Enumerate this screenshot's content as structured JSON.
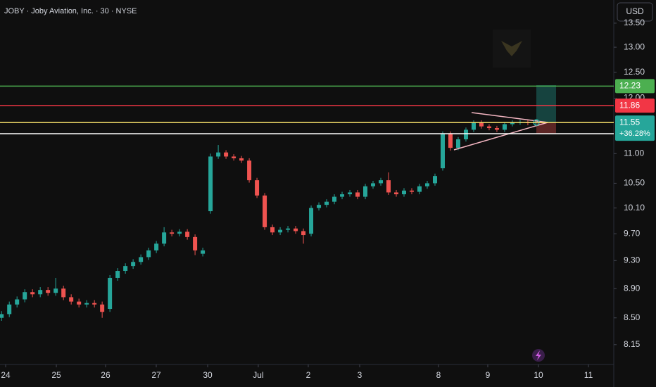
{
  "chart_data": {
    "type": "candlestick",
    "title": "JOBY · Joby Aviation, Inc. · 30 · NYSE",
    "currency": "USD",
    "log_scale": true,
    "grid": false,
    "up_color": "#26a69a",
    "down_color": "#ef5350",
    "x": [
      0,
      1,
      2,
      3,
      4,
      5,
      6,
      7,
      8,
      9,
      10,
      11,
      12,
      13,
      14,
      15,
      16,
      17,
      18,
      19,
      20,
      21,
      22,
      23,
      24,
      25,
      26,
      27,
      28,
      29,
      30,
      31,
      32,
      33,
      34,
      35,
      36,
      37,
      38,
      39,
      40,
      41,
      42,
      43,
      44,
      45,
      46,
      47,
      48,
      49,
      50,
      51,
      52,
      53,
      54,
      55,
      56,
      57,
      58,
      59,
      60,
      61,
      62,
      63,
      64,
      65,
      66,
      67,
      68,
      69
    ],
    "open": [
      8.5,
      8.55,
      8.68,
      8.75,
      8.85,
      8.82,
      8.88,
      8.84,
      8.9,
      8.78,
      8.72,
      8.68,
      8.7,
      8.68,
      8.62,
      9.05,
      9.15,
      9.22,
      9.28,
      9.35,
      9.45,
      9.55,
      9.72,
      9.7,
      9.73,
      9.65,
      9.4,
      10.05,
      10.95,
      11.02,
      10.95,
      10.92,
      10.88,
      10.55,
      10.3,
      9.8,
      9.72,
      9.76,
      9.78,
      9.74,
      9.7,
      10.1,
      10.15,
      10.2,
      10.28,
      10.32,
      10.35,
      10.28,
      10.45,
      10.5,
      10.55,
      10.35,
      10.32,
      10.38,
      10.36,
      10.45,
      10.5,
      10.75,
      11.35,
      11.1,
      11.25,
      11.42,
      11.55,
      11.48,
      11.45,
      11.42,
      11.52,
      11.55,
      11.56,
      11.54
    ],
    "high": [
      8.59,
      8.72,
      8.79,
      8.89,
      8.89,
      8.92,
      8.92,
      9.05,
      8.94,
      8.82,
      8.76,
      8.74,
      8.74,
      8.72,
      9.09,
      9.19,
      9.26,
      9.32,
      9.39,
      9.49,
      9.59,
      9.8,
      9.76,
      9.77,
      9.77,
      9.69,
      9.49,
      11.0,
      11.15,
      11.06,
      10.99,
      10.96,
      10.92,
      10.59,
      10.34,
      9.84,
      9.8,
      9.82,
      9.82,
      9.78,
      10.14,
      10.19,
      10.24,
      10.32,
      10.36,
      10.39,
      10.39,
      10.49,
      10.54,
      10.59,
      10.68,
      10.39,
      10.42,
      10.42,
      10.49,
      10.54,
      10.66,
      11.39,
      11.39,
      11.29,
      11.46,
      11.59,
      11.59,
      11.52,
      11.49,
      11.56,
      11.59,
      11.6,
      11.6,
      11.59
    ],
    "low": [
      8.46,
      8.51,
      8.64,
      8.71,
      8.78,
      8.78,
      8.8,
      8.8,
      8.74,
      8.68,
      8.64,
      8.64,
      8.64,
      8.5,
      8.58,
      9.01,
      9.11,
      9.18,
      9.24,
      9.31,
      9.41,
      9.51,
      9.66,
      9.66,
      9.61,
      9.38,
      9.36,
      10.01,
      10.91,
      10.91,
      10.88,
      10.84,
      10.51,
      10.26,
      9.76,
      9.68,
      9.68,
      9.72,
      9.7,
      9.55,
      9.66,
      10.06,
      10.11,
      10.16,
      10.24,
      10.28,
      10.24,
      10.24,
      10.41,
      10.46,
      10.31,
      10.28,
      10.28,
      10.32,
      10.32,
      10.41,
      10.46,
      10.71,
      11.05,
      11.06,
      11.21,
      11.38,
      11.44,
      11.41,
      11.38,
      11.38,
      11.48,
      11.51,
      11.5,
      11.5
    ],
    "close": [
      8.55,
      8.68,
      8.75,
      8.85,
      8.82,
      8.88,
      8.84,
      8.9,
      8.78,
      8.72,
      8.68,
      8.7,
      8.68,
      8.58,
      9.05,
      9.15,
      9.22,
      9.28,
      9.35,
      9.45,
      9.55,
      9.72,
      9.7,
      9.73,
      9.65,
      9.45,
      9.45,
      10.95,
      11.02,
      10.95,
      10.92,
      10.88,
      10.55,
      10.3,
      9.8,
      9.72,
      9.76,
      9.78,
      9.74,
      9.68,
      10.1,
      10.15,
      10.2,
      10.28,
      10.32,
      10.35,
      10.28,
      10.45,
      10.5,
      10.55,
      10.35,
      10.32,
      10.38,
      10.36,
      10.45,
      10.5,
      10.62,
      11.35,
      11.1,
      11.25,
      11.42,
      11.55,
      11.48,
      11.45,
      11.42,
      11.52,
      11.55,
      11.56,
      11.54,
      11.55
    ],
    "xlim": [
      -0.2,
      79.1
    ],
    "xticks": [
      {
        "value": 0.53,
        "label": "24"
      },
      {
        "value": 7.08,
        "label": "25"
      },
      {
        "value": 13.44,
        "label": "26"
      },
      {
        "value": 19.99,
        "label": "27"
      },
      {
        "value": 26.63,
        "label": "30"
      },
      {
        "value": 33.17,
        "label": "Jul"
      },
      {
        "value": 39.63,
        "label": "2"
      },
      {
        "value": 46.27,
        "label": "3"
      },
      {
        "value": 56.45,
        "label": "8"
      },
      {
        "value": 62.82,
        "label": "9"
      },
      {
        "value": 69.37,
        "label": "10"
      },
      {
        "value": 75.83,
        "label": "11"
      }
    ],
    "ylim": [
      7.9,
      14.0
    ],
    "yticks": [
      {
        "value": 13.5,
        "label": "13.50"
      },
      {
        "value": 13,
        "label": "13.00"
      },
      {
        "value": 12.5,
        "label": "12.50"
      },
      {
        "value": 12,
        "label": "12.00"
      },
      {
        "value": 11,
        "label": "11.00"
      },
      {
        "value": 10.5,
        "label": "10.50"
      },
      {
        "value": 10.1,
        "label": "10.10"
      },
      {
        "value": 9.7,
        "label": "9.70"
      },
      {
        "value": 9.3,
        "label": "9.30"
      },
      {
        "value": 8.9,
        "label": "8.90"
      },
      {
        "value": 8.5,
        "label": "8.50"
      },
      {
        "value": 8.15,
        "label": "8.15"
      }
    ],
    "levels": [
      {
        "value": 12.23,
        "color": "#4caf50",
        "badge_color": "#4caf50"
      },
      {
        "value": 11.86,
        "color": "#f23645",
        "badge_color": "#f23645"
      },
      {
        "value": 11.55,
        "color": "#f7e26b",
        "badge_color": "#26a69a"
      },
      {
        "value": 11.35,
        "color": "#ffffff"
      }
    ],
    "change_label": "+36.28%"
  }
}
